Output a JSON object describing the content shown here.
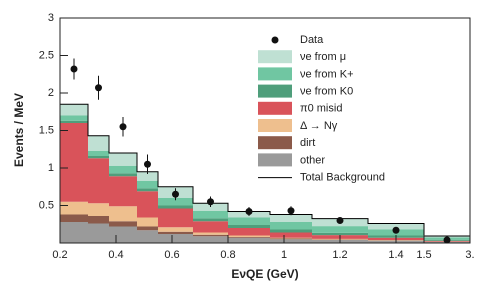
{
  "chart_data": {
    "type": "stacked-histogram",
    "ylabel": "Events / MeV",
    "xlabel": "EνQE (GeV)",
    "bins": [
      0.2,
      0.3,
      0.375,
      0.475,
      0.55,
      0.675,
      0.8,
      0.95,
      1.1,
      1.3,
      1.5,
      3.0
    ],
    "series": [
      {
        "name": "other",
        "color": "#9a9a9a",
        "values": [
          0.28,
          0.26,
          0.22,
          0.17,
          0.12,
          0.09,
          0.07,
          0.05,
          0.04,
          0.03,
          0.015
        ]
      },
      {
        "name": "dirt",
        "color": "#8b5a4a",
        "values": [
          0.1,
          0.1,
          0.07,
          0.05,
          0.03,
          0.02,
          0.01,
          0.01,
          0.005,
          0.005,
          0.002
        ]
      },
      {
        "name": "Δ → Nγ",
        "color": "#eebf8e",
        "values": [
          0.17,
          0.17,
          0.2,
          0.12,
          0.06,
          0.03,
          0.02,
          0.01,
          0.01,
          0.005,
          0.002
        ]
      },
      {
        "name": "π0 misid",
        "color": "#d9535a",
        "values": [
          1.05,
          0.6,
          0.4,
          0.35,
          0.25,
          0.15,
          0.1,
          0.07,
          0.05,
          0.03,
          0.01
        ]
      },
      {
        "name": "νe from K0",
        "color": "#4f9e7b",
        "values": [
          0.03,
          0.03,
          0.04,
          0.04,
          0.04,
          0.04,
          0.04,
          0.04,
          0.03,
          0.03,
          0.015
        ]
      },
      {
        "name": "νe from K+",
        "color": "#70c6a2",
        "values": [
          0.07,
          0.07,
          0.1,
          0.1,
          0.1,
          0.1,
          0.1,
          0.1,
          0.09,
          0.08,
          0.03
        ]
      },
      {
        "name": "νe from μ",
        "color": "#bfe0d3",
        "values": [
          0.15,
          0.2,
          0.17,
          0.12,
          0.15,
          0.1,
          0.08,
          0.1,
          0.1,
          0.08,
          0.02
        ]
      }
    ],
    "total_label": "Total Background",
    "data_points": {
      "name": "Data",
      "color": "#111",
      "x": [
        0.25,
        0.3375,
        0.425,
        0.5125,
        0.6125,
        0.7375,
        0.875,
        1.025,
        1.2,
        1.4,
        2.25
      ],
      "values": [
        2.32,
        2.07,
        1.55,
        1.05,
        0.65,
        0.55,
        0.42,
        0.43,
        0.3,
        0.17,
        0.04
      ],
      "errors": [
        0.14,
        0.16,
        0.13,
        0.13,
        0.08,
        0.07,
        0.06,
        0.06,
        0.04,
        0.03,
        0.02
      ]
    },
    "xlim": [
      0.2,
      3.0
    ],
    "xticks": [
      0.2,
      0.4,
      0.6,
      0.8,
      1,
      1.2,
      1.4,
      1.5,
      {
        "value": 3,
        "label": "3."
      }
    ],
    "ylim": [
      0,
      3
    ],
    "yticks": [
      0.5,
      1,
      1.5,
      2,
      2.5,
      3
    ]
  }
}
